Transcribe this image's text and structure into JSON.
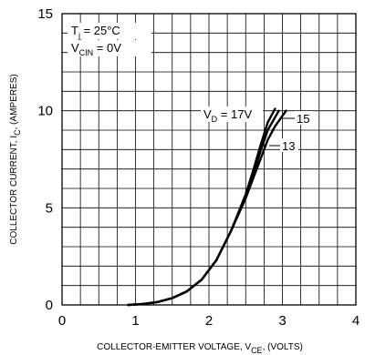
{
  "chart_data": {
    "type": "line",
    "xlabel": {
      "main": "COLLECTOR-EMITTER VOLTAGE, V",
      "sub": "CE",
      "suffix": ", (VOLTS)"
    },
    "ylabel": {
      "main": "COLLECTOR CURRENT, I",
      "sub": "C",
      "suffix": ", (AMPERES)"
    },
    "xlim": [
      0,
      4
    ],
    "ylim": [
      0,
      15
    ],
    "xticks": [
      "0",
      "1",
      "2",
      "3",
      "4"
    ],
    "yticks": [
      "0",
      "5",
      "10",
      "15"
    ],
    "grid": true,
    "conditions": [
      {
        "main": "T",
        "sub": "j",
        "rest": " = 25°C"
      },
      {
        "main": "V",
        "sub": "CIN",
        "rest": " = 0V"
      }
    ],
    "series": [
      {
        "name": "17",
        "x": [
          0.9,
          1.1,
          1.3,
          1.5,
          1.7,
          1.9,
          2.1,
          2.3,
          2.5,
          2.6,
          2.7,
          2.8,
          2.9
        ],
        "y": [
          0.0,
          0.05,
          0.15,
          0.35,
          0.7,
          1.3,
          2.3,
          3.8,
          5.7,
          6.9,
          8.2,
          9.4,
          10.1
        ]
      },
      {
        "name": "15",
        "x": [
          0.9,
          1.1,
          1.3,
          1.5,
          1.7,
          1.9,
          2.1,
          2.3,
          2.5,
          2.6,
          2.7,
          2.8,
          2.95
        ],
        "y": [
          0.0,
          0.05,
          0.15,
          0.35,
          0.7,
          1.3,
          2.3,
          3.8,
          5.6,
          6.7,
          7.9,
          9.0,
          10.0
        ]
      },
      {
        "name": "13",
        "x": [
          0.9,
          1.1,
          1.3,
          1.5,
          1.7,
          1.9,
          2.1,
          2.3,
          2.5,
          2.6,
          2.7,
          2.8,
          2.9,
          3.05
        ],
        "y": [
          0.0,
          0.05,
          0.15,
          0.35,
          0.7,
          1.3,
          2.3,
          3.8,
          5.5,
          6.5,
          7.5,
          8.5,
          9.2,
          10.0
        ]
      }
    ],
    "annotations": {
      "vd_label": {
        "main": "V",
        "sub": "D",
        "rest": " = 17V"
      },
      "label_15": "15",
      "label_13": "13"
    }
  }
}
